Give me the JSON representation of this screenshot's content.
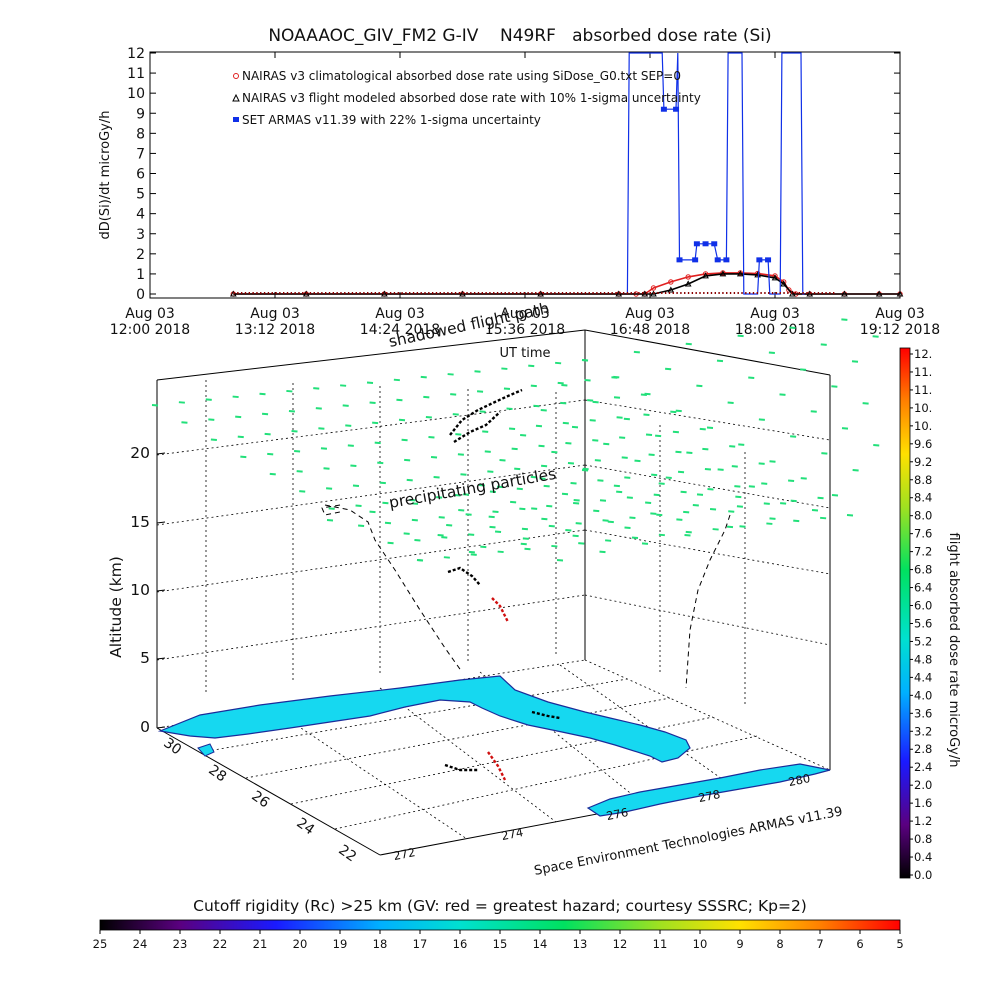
{
  "chart_data": [
    {
      "type": "line",
      "title": "NOAAAOC_GIV_FM2 G-IV    N49RF   absorbed dose rate (Si)",
      "xlabel": "UT time",
      "ylabel": "dD(Si)/dt microGy/h",
      "ylim": [
        0,
        12
      ],
      "yticks": [
        "0",
        "1",
        "2",
        "3",
        "4",
        "5",
        "6",
        "7",
        "8",
        "9",
        "10",
        "11",
        "12"
      ],
      "xticks": [
        {
          "date": "Aug 03",
          "time": "12:00 2018"
        },
        {
          "date": "Aug 03",
          "time": "13:12 2018"
        },
        {
          "date": "Aug 03",
          "time": "14:24 2018"
        },
        {
          "date": "Aug 03",
          "time": "15:36 2018"
        },
        {
          "date": "Aug 03",
          "time": "16:48 2018"
        },
        {
          "date": "Aug 03",
          "time": "18:00 2018"
        },
        {
          "date": "Aug 03",
          "time": "19:12 2018"
        }
      ],
      "xlim_minutes": [
        0,
        432
      ],
      "legend_position": "top-left",
      "series": [
        {
          "name": "NAIRAS v3 climatological absorbed dose rate using SiDose_G0.txt SEP=0",
          "color": "#e02020",
          "x": [
            48,
            90,
            135,
            180,
            225,
            270,
            280,
            285,
            290,
            300,
            310,
            320,
            330,
            340,
            350,
            360,
            365,
            368,
            372,
            380,
            400,
            420,
            432
          ],
          "values": [
            0,
            0,
            0,
            0,
            0,
            0,
            0,
            0,
            0.3,
            0.6,
            0.85,
            1.0,
            1.05,
            1.05,
            1.02,
            0.9,
            0.6,
            0.2,
            0,
            0,
            0,
            0,
            0
          ]
        },
        {
          "name": "NAIRAS v3 flight modeled absorbed dose rate with 10% 1-sigma uncertainty",
          "color": "#000000",
          "x": [
            48,
            90,
            135,
            180,
            225,
            270,
            285,
            290,
            300,
            310,
            320,
            330,
            340,
            350,
            360,
            365,
            370,
            380,
            400,
            420,
            432
          ],
          "values": [
            0,
            0,
            0,
            0,
            0,
            0,
            0,
            0,
            0.2,
            0.5,
            0.9,
            1.0,
            1.0,
            0.95,
            0.8,
            0.5,
            0,
            0,
            0,
            0,
            0
          ]
        },
        {
          "name": "SET ARMAS v11.39 with 22% 1-sigma uncertainty",
          "color": "#1030e8",
          "x": [
            275,
            276,
            295,
            296,
            303,
            304,
            305,
            314,
            315,
            320,
            325,
            327,
            332,
            333,
            341,
            342,
            350,
            351,
            356,
            357,
            363,
            364,
            366,
            367,
            375,
            376,
            377
          ],
          "values": [
            0,
            12,
            12,
            9.2,
            9.2,
            12,
            1.7,
            1.7,
            2.5,
            2.5,
            2.5,
            1.7,
            1.7,
            12,
            12,
            0,
            0,
            1.7,
            1.7,
            0,
            0,
            12,
            12,
            12,
            12,
            0,
            0
          ]
        }
      ]
    },
    {
      "type": "scatter",
      "title": "",
      "xlabel": "",
      "ylabel": "Altitude (km)",
      "zticks": [
        "0",
        "5",
        "10",
        "15",
        "20"
      ],
      "lat_ticks": [
        "30",
        "28",
        "26",
        "24",
        "22"
      ],
      "lon_ticks": [
        "272",
        "274",
        "276",
        "278",
        "280"
      ],
      "annotations": [
        "shadowed flight path",
        "precipitating particles",
        "Space Environment Technologies ARMAS v11.39"
      ],
      "land_color": "#16d8f0",
      "coast_color": "#1a2c9a",
      "grid_marker_color": "#22e07a"
    }
  ],
  "colorbar_right": {
    "label": "flight absorbed dose rate microGy/h",
    "ticks": [
      "12.",
      "11.",
      "11.",
      "10.",
      "10.",
      "9.6",
      "9.2",
      "8.8",
      "8.4",
      "8.0",
      "7.6",
      "7.2",
      "6.8",
      "6.4",
      "6.0",
      "5.6",
      "5.2",
      "4.8",
      "4.4",
      "4.0",
      "3.6",
      "3.2",
      "2.8",
      "2.4",
      "2.0",
      "1.6",
      "1.2",
      "0.8",
      "0.4",
      "0.0"
    ]
  },
  "colorbar_bottom": {
    "label": "Cutoff rigidity (Rc) >25 km (GV: red = greatest hazard; courtesy SSSRC; Kp=2)",
    "ticks": [
      "25",
      "24",
      "23",
      "22",
      "21",
      "20",
      "19",
      "18",
      "17",
      "16",
      "15",
      "14",
      "13",
      "12",
      "11",
      "10",
      "9",
      "8",
      "7",
      "6",
      "5"
    ]
  }
}
